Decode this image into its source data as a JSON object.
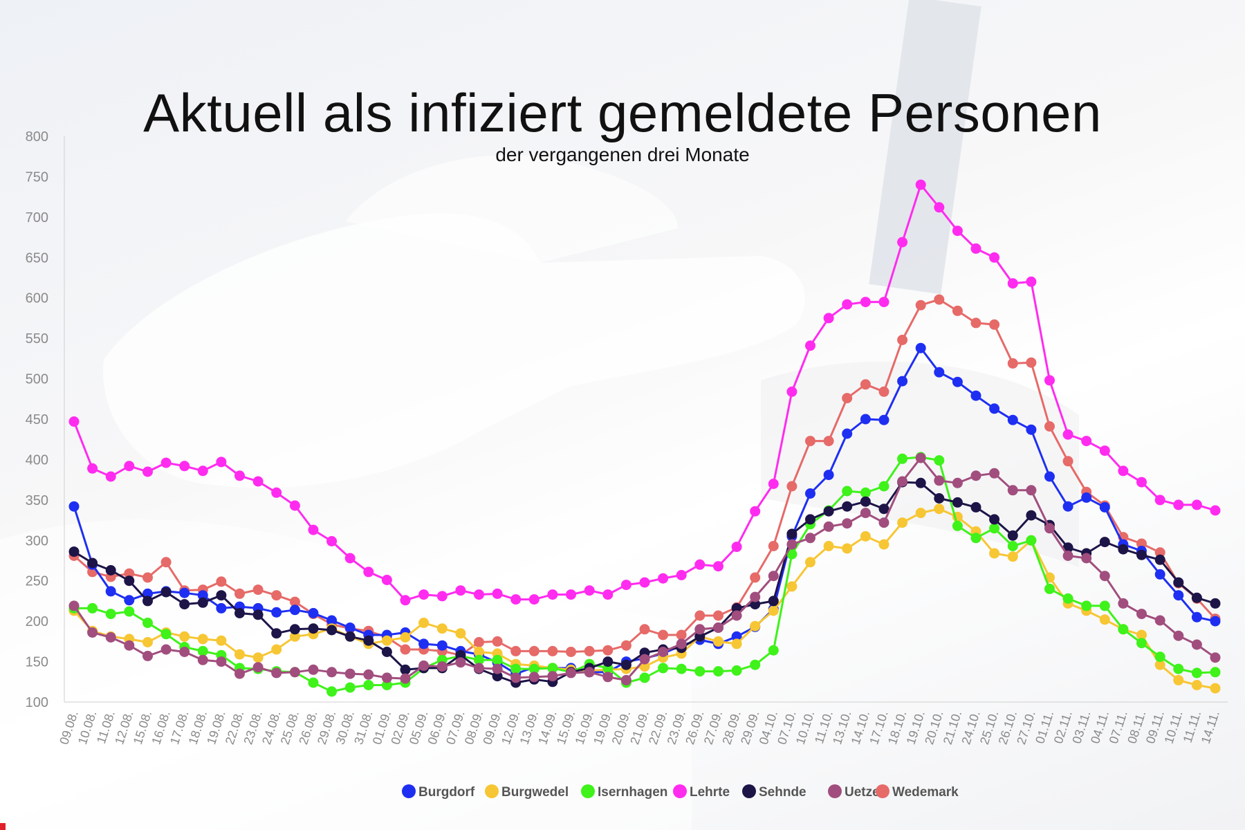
{
  "colors": {
    "Burgdorf": "#1e2ff2",
    "Burgwedel": "#f7c634",
    "Isernhagen": "#3ef21a",
    "Lehrte": "#ff2bef",
    "Sehnde": "#1d1447",
    "Uetze": "#a14e7e",
    "Wedemark": "#e66a68"
  },
  "chart_data": {
    "type": "line",
    "title": "Aktuell als infiziert gemeldete Personen",
    "subtitle": "der vergangenen drei Monate",
    "ylim": [
      100,
      800
    ],
    "yticks": [
      100,
      150,
      200,
      250,
      300,
      350,
      400,
      450,
      500,
      550,
      600,
      650,
      700,
      750,
      800
    ],
    "grid": false,
    "legend_position": "bottom",
    "x_tick_labels": [
      "09.08.",
      "10.08.",
      "11.08.",
      "12.08.",
      "15.08.",
      "16.08.",
      "17.08.",
      "18.08.",
      "19.08.",
      "22.08.",
      "23.08.",
      "24.08.",
      "25.08.",
      "26.08.",
      "29.08.",
      "30.08.",
      "31.08.",
      "01.09.",
      "02.09.",
      "05.09.",
      "06.09.",
      "07.09.",
      "08.09.",
      "09.09.",
      "12.09.",
      "13.09.",
      "14.09.",
      "15.09.",
      "16.09.",
      "19.09.",
      "20.09.",
      "21.09.",
      "22.09.",
      "23.09.",
      "26.09.",
      "27.09.",
      "28.09.",
      "29.09.",
      "04.10.",
      "07.10.",
      "10.10.",
      "11.10.",
      "13.10.",
      "14.10.",
      "17.10.",
      "18.10.",
      "19.10.",
      "20.10.",
      "21.10.",
      "24.10.",
      "25.10.",
      "26.10.",
      "27.10.",
      "01.11.",
      "02.11.",
      "03.11.",
      "04.11.",
      "07.11.",
      "08.11.",
      "09.11.",
      "10.11.",
      "11.11.",
      "14.11."
    ],
    "series": [
      {
        "name": "Lehrte",
        "values": [
          447,
          389,
          379,
          392,
          385,
          396,
          392,
          386,
          397,
          380,
          373,
          359,
          343,
          313,
          299,
          278,
          261,
          251,
          226,
          233,
          231,
          238,
          233,
          234,
          227,
          227,
          233,
          233,
          238,
          233,
          245,
          248,
          253,
          257,
          270,
          268,
          292,
          336,
          370,
          484,
          541,
          575,
          592,
          595,
          595,
          669,
          740,
          712,
          683,
          661,
          650,
          618,
          620,
          498,
          431,
          423,
          411,
          386,
          372,
          350,
          344,
          344,
          337
        ]
      },
      {
        "name": "Wedemark",
        "values": [
          281,
          261,
          255,
          259,
          254,
          273,
          238,
          239,
          249,
          234,
          239,
          232,
          224,
          209,
          196,
          191,
          188,
          180,
          165,
          165,
          163,
          158,
          174,
          175,
          163,
          163,
          163,
          162,
          163,
          164,
          170,
          190,
          183,
          183,
          207,
          207,
          217,
          254,
          293,
          367,
          423,
          423,
          476,
          493,
          484,
          548,
          591,
          598,
          584,
          569,
          567,
          519,
          520,
          441,
          398,
          360,
          343,
          304,
          296,
          285,
          247,
          228,
          203
        ]
      },
      {
        "name": "Burgdorf",
        "values": [
          342,
          270,
          237,
          226,
          234,
          237,
          235,
          232,
          216,
          218,
          216,
          211,
          214,
          210,
          201,
          192,
          183,
          183,
          186,
          172,
          170,
          163,
          159,
          149,
          135,
          143,
          142,
          142,
          137,
          137,
          150,
          154,
          160,
          170,
          177,
          172,
          181,
          193,
          215,
          305,
          358,
          381,
          432,
          450,
          449,
          497,
          538,
          508,
          496,
          479,
          463,
          449,
          437,
          379,
          342,
          353,
          341,
          295,
          287,
          258,
          232,
          205,
          200
        ]
      },
      {
        "name": "Burgwedel",
        "values": [
          213,
          188,
          181,
          178,
          174,
          186,
          181,
          178,
          176,
          159,
          155,
          165,
          181,
          184,
          191,
          181,
          172,
          176,
          180,
          198,
          191,
          185,
          162,
          160,
          147,
          145,
          142,
          140,
          139,
          140,
          141,
          144,
          155,
          160,
          181,
          175,
          172,
          194,
          213,
          243,
          273,
          293,
          290,
          305,
          295,
          322,
          334,
          339,
          329,
          311,
          284,
          280,
          300,
          254,
          222,
          213,
          202,
          190,
          183,
          146,
          127,
          121,
          117
        ]
      },
      {
        "name": "Isernhagen",
        "values": [
          216,
          216,
          209,
          212,
          198,
          184,
          168,
          163,
          158,
          142,
          141,
          138,
          137,
          124,
          113,
          118,
          121,
          121,
          124,
          142,
          152,
          157,
          152,
          152,
          141,
          141,
          142,
          137,
          147,
          142,
          124,
          130,
          142,
          141,
          138,
          138,
          139,
          146,
          164,
          283,
          320,
          337,
          361,
          359,
          367,
          401,
          403,
          399,
          318,
          303,
          315,
          293,
          300,
          240,
          228,
          219,
          219,
          190,
          173,
          156,
          141,
          136,
          137
        ]
      },
      {
        "name": "Sehnde",
        "values": [
          286,
          272,
          263,
          250,
          225,
          236,
          221,
          223,
          232,
          210,
          208,
          185,
          190,
          191,
          189,
          181,
          176,
          162,
          140,
          142,
          142,
          158,
          141,
          132,
          124,
          128,
          125,
          137,
          142,
          150,
          146,
          161,
          165,
          167,
          181,
          192,
          216,
          221,
          225,
          308,
          326,
          336,
          342,
          348,
          339,
          372,
          371,
          352,
          347,
          341,
          326,
          306,
          331,
          319,
          291,
          284,
          298,
          289,
          282,
          276,
          248,
          229,
          222
        ]
      },
      {
        "name": "Uetze",
        "values": [
          219,
          186,
          180,
          170,
          157,
          165,
          162,
          152,
          150,
          135,
          143,
          136,
          137,
          140,
          137,
          135,
          134,
          130,
          129,
          145,
          144,
          149,
          142,
          141,
          130,
          131,
          132,
          136,
          137,
          131,
          127,
          153,
          162,
          172,
          190,
          192,
          207,
          230,
          256,
          295,
          303,
          317,
          321,
          334,
          322,
          373,
          402,
          374,
          371,
          380,
          383,
          362,
          362,
          315,
          281,
          278,
          256,
          222,
          209,
          201,
          182,
          171,
          155
        ]
      }
    ]
  }
}
